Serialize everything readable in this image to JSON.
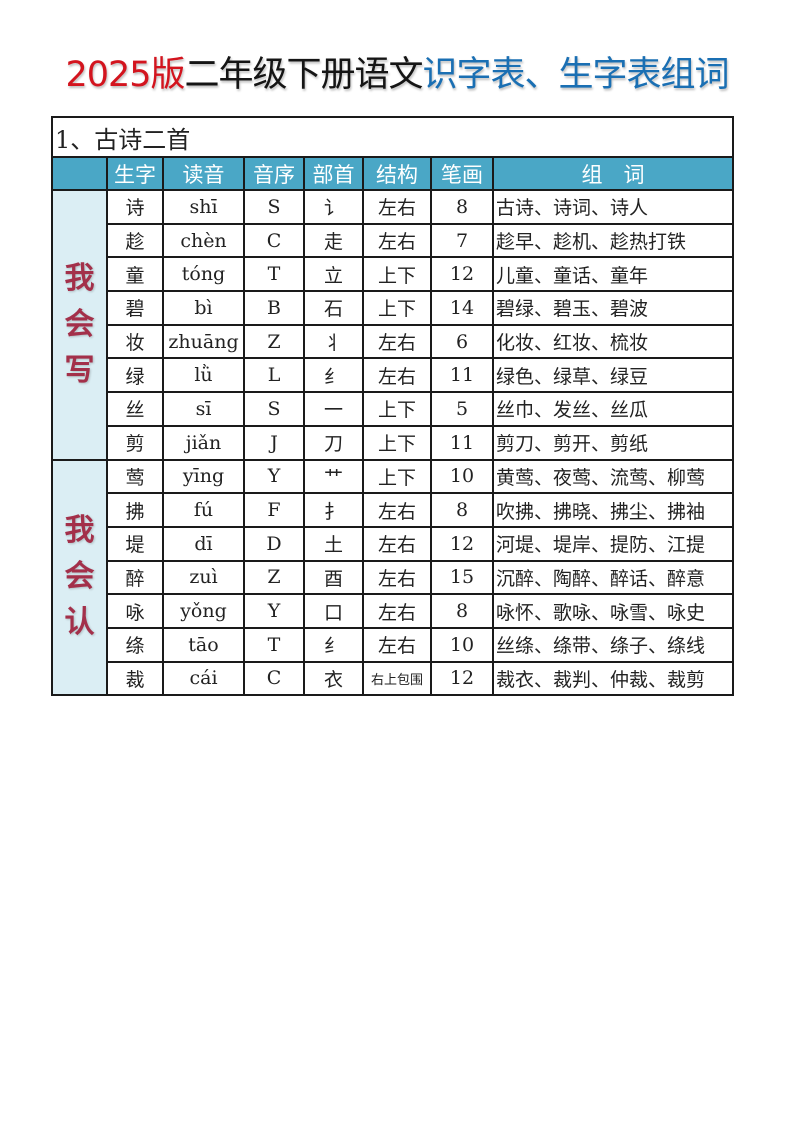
{
  "title": {
    "part1": "2025版",
    "part2": "二年级下册语文",
    "part3": "识字表、生字表组词"
  },
  "lesson": "1、古诗二首",
  "headers": [
    "",
    "生字",
    "读音",
    "音序",
    "部首",
    "结构",
    "笔画",
    "组　词"
  ],
  "groups": [
    {
      "label": "我会写",
      "rows": [
        {
          "char": "诗",
          "pinyin": "shī",
          "initial": "S",
          "radical": "讠",
          "structure": "左右",
          "strokes": "8",
          "words": "古诗、诗词、诗人"
        },
        {
          "char": "趁",
          "pinyin": "chèn",
          "initial": "C",
          "radical": "走",
          "structure": "左右",
          "strokes": "7",
          "words": "趁早、趁机、趁热打铁"
        },
        {
          "char": "童",
          "pinyin": "tóng",
          "initial": "T",
          "radical": "立",
          "structure": "上下",
          "strokes": "12",
          "words": "儿童、童话、童年"
        },
        {
          "char": "碧",
          "pinyin": "bì",
          "initial": "B",
          "radical": "石",
          "structure": "上下",
          "strokes": "14",
          "words": "碧绿、碧玉、碧波"
        },
        {
          "char": "妆",
          "pinyin": "zhuāng",
          "initial": "Z",
          "radical": "丬",
          "structure": "左右",
          "strokes": "6",
          "words": "化妆、红妆、梳妆"
        },
        {
          "char": "绿",
          "pinyin": "lǜ",
          "initial": "L",
          "radical": "纟",
          "structure": "左右",
          "strokes": "11",
          "words": "绿色、绿草、绿豆"
        },
        {
          "char": "丝",
          "pinyin": "sī",
          "initial": "S",
          "radical": "一",
          "structure": "上下",
          "strokes": "5",
          "words": "丝巾、发丝、丝瓜"
        },
        {
          "char": "剪",
          "pinyin": "jiǎn",
          "initial": "J",
          "radical": "刀",
          "structure": "上下",
          "strokes": "11",
          "words": "剪刀、剪开、剪纸"
        }
      ]
    },
    {
      "label": "我会认",
      "rows": [
        {
          "char": "莺",
          "pinyin": "yīng",
          "initial": "Y",
          "radical": "艹",
          "structure": "上下",
          "strokes": "10",
          "words": "黄莺、夜莺、流莺、柳莺"
        },
        {
          "char": "拂",
          "pinyin": "fú",
          "initial": "F",
          "radical": "扌",
          "structure": "左右",
          "strokes": "8",
          "words": "吹拂、拂晓、拂尘、拂袖"
        },
        {
          "char": "堤",
          "pinyin": "dī",
          "initial": "D",
          "radical": "土",
          "structure": "左右",
          "strokes": "12",
          "words": "河堤、堤岸、提防、江提"
        },
        {
          "char": "醉",
          "pinyin": "zuì",
          "initial": "Z",
          "radical": "酉",
          "structure": "左右",
          "strokes": "15",
          "words": "沉醉、陶醉、醉话、醉意"
        },
        {
          "char": "咏",
          "pinyin": "yǒng",
          "initial": "Y",
          "radical": "口",
          "structure": "左右",
          "strokes": "8",
          "words": "咏怀、歌咏、咏雪、咏史"
        },
        {
          "char": "绦",
          "pinyin": "tāo",
          "initial": "T",
          "radical": "纟",
          "structure": "左右",
          "strokes": "10",
          "words": "丝绦、绦带、绦子、绦线"
        },
        {
          "char": "裁",
          "pinyin": "cái",
          "initial": "C",
          "radical": "衣",
          "structure": "右上包围",
          "strokes": "12",
          "words": "裁衣、裁判、仲裁、裁剪"
        }
      ]
    }
  ]
}
